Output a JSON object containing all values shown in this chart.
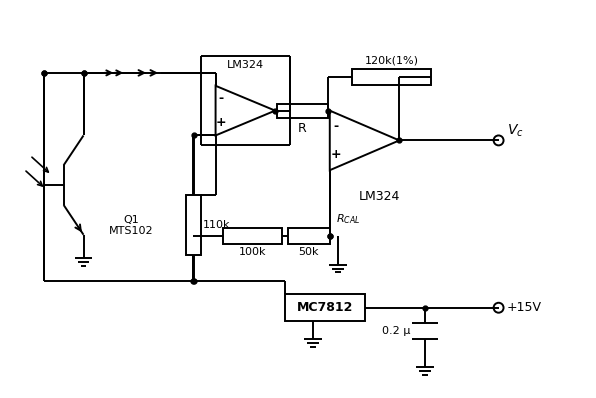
{
  "bg_color": "#ffffff",
  "line_color": "#000000",
  "components": {
    "transistor_label1": "Q1",
    "transistor_label2": "MTS102",
    "resistor_110k": "110k",
    "resistor_100k": "100k",
    "resistor_50k": "50k",
    "resistor_R": "R",
    "resistor_120k": "120k(1%)",
    "resistor_Rcal": "R_{CAL}",
    "opamp1_label": "LM324",
    "opamp2_label": "LM324",
    "regulator_label": "MC7812",
    "cap_label": "0.2 μ",
    "output_label": "V_c",
    "supply_label": "+15V"
  }
}
